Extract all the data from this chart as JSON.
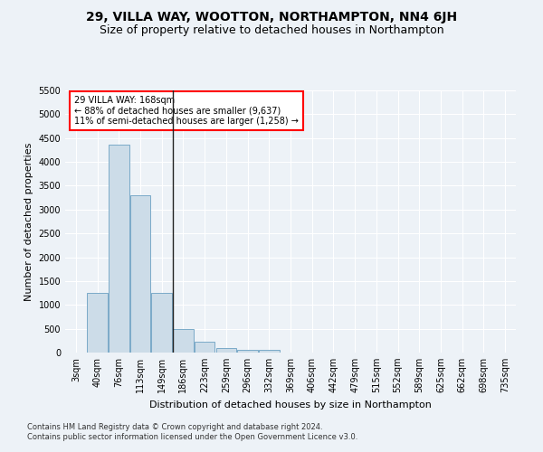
{
  "title": "29, VILLA WAY, WOOTTON, NORTHAMPTON, NN4 6JH",
  "subtitle": "Size of property relative to detached houses in Northampton",
  "xlabel": "Distribution of detached houses by size in Northampton",
  "ylabel": "Number of detached properties",
  "footer_line1": "Contains HM Land Registry data © Crown copyright and database right 2024.",
  "footer_line2": "Contains public sector information licensed under the Open Government Licence v3.0.",
  "annotation_line1": "29 VILLA WAY: 168sqm",
  "annotation_line2": "← 88% of detached houses are smaller (9,637)",
  "annotation_line3": "11% of semi-detached houses are larger (1,258) →",
  "bar_color": "#ccdce8",
  "bar_edge_color": "#7aaac8",
  "categories": [
    "3sqm",
    "40sqm",
    "76sqm",
    "113sqm",
    "149sqm",
    "186sqm",
    "223sqm",
    "259sqm",
    "296sqm",
    "332sqm",
    "369sqm",
    "406sqm",
    "442sqm",
    "479sqm",
    "515sqm",
    "552sqm",
    "589sqm",
    "625sqm",
    "662sqm",
    "698sqm",
    "735sqm"
  ],
  "values": [
    0,
    1260,
    4360,
    3300,
    1260,
    490,
    220,
    95,
    60,
    50,
    0,
    0,
    0,
    0,
    0,
    0,
    0,
    0,
    0,
    0,
    0
  ],
  "n_bars": 21,
  "property_bar_index": 4,
  "ylim": [
    0,
    5500
  ],
  "yticks": [
    0,
    500,
    1000,
    1500,
    2000,
    2500,
    3000,
    3500,
    4000,
    4500,
    5000,
    5500
  ],
  "background_color": "#edf2f7",
  "grid_color": "#ffffff",
  "title_fontsize": 10,
  "subtitle_fontsize": 9,
  "axis_label_fontsize": 8,
  "tick_fontsize": 7,
  "annotation_fontsize": 7,
  "footer_fontsize": 6
}
